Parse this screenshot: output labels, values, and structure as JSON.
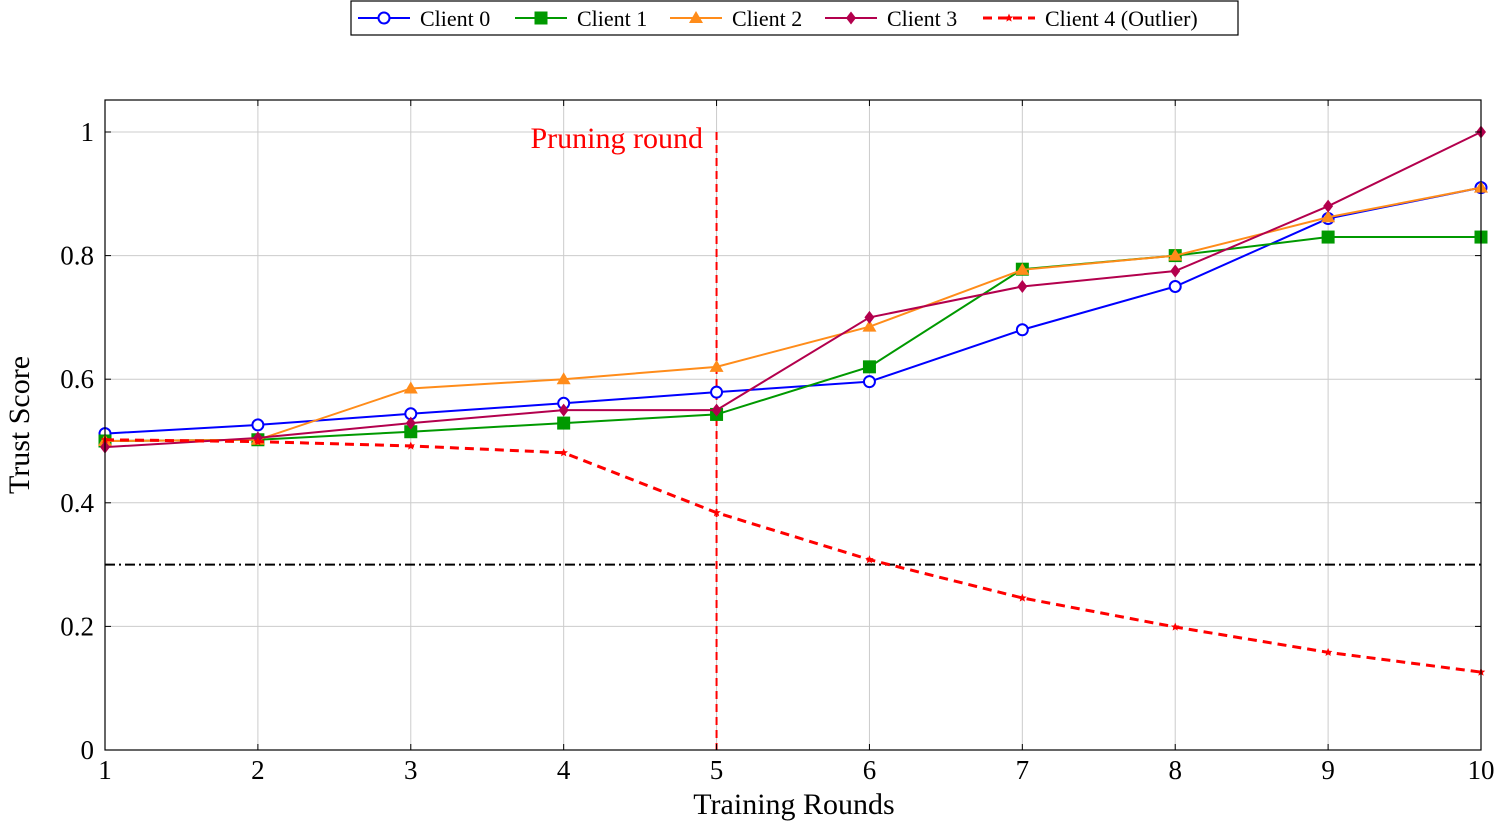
{
  "chart_data": {
    "type": "line",
    "xlabel": "Training Rounds",
    "ylabel": "Trust Score",
    "x": [
      1,
      2,
      3,
      4,
      5,
      6,
      7,
      8,
      9,
      10
    ],
    "xlim": [
      1,
      10
    ],
    "ylim": [
      0,
      1.05
    ],
    "xticks": [
      "1",
      "2",
      "3",
      "4",
      "5",
      "6",
      "7",
      "8",
      "9",
      "10"
    ],
    "yticks": [
      0,
      0.2,
      0.4,
      0.6,
      0.8,
      1
    ],
    "ytick_labels": [
      "0",
      "0.2",
      "0.4",
      "0.6",
      "0.8",
      "1"
    ],
    "grid": true,
    "legend_position": "top-center",
    "series": [
      {
        "name": "Client 0",
        "color": "#0000ff",
        "marker": "circle-open",
        "dash": "solid",
        "values": [
          0.512,
          0.526,
          0.544,
          0.561,
          0.579,
          0.596,
          0.68,
          0.75,
          0.86,
          0.91
        ]
      },
      {
        "name": "Client 1",
        "color": "#009900",
        "marker": "square",
        "dash": "solid",
        "values": [
          0.5,
          0.502,
          0.515,
          0.529,
          0.543,
          0.62,
          0.778,
          0.8,
          0.83,
          0.83
        ]
      },
      {
        "name": "Client 2",
        "color": "#ff8c1a",
        "marker": "triangle",
        "dash": "solid",
        "values": [
          0.5,
          0.502,
          0.585,
          0.6,
          0.62,
          0.685,
          0.777,
          0.8,
          0.862,
          0.91
        ]
      },
      {
        "name": "Client 3",
        "color": "#b3004d",
        "marker": "diamond",
        "dash": "solid",
        "values": [
          0.49,
          0.505,
          0.529,
          0.55,
          0.55,
          0.7,
          0.75,
          0.775,
          0.88,
          1.0
        ]
      },
      {
        "name": "Client 4 (Outlier)",
        "color": "#ff0000",
        "marker": "star",
        "dash": "dashed",
        "values": [
          0.502,
          0.499,
          0.492,
          0.481,
          0.384,
          0.308,
          0.246,
          0.199,
          0.158,
          0.126
        ]
      }
    ],
    "threshold": {
      "y": 0.3,
      "color": "#000000",
      "style": "dash-dot"
    },
    "annotation": {
      "text": "Pruning round",
      "x": 5,
      "color": "#ff0000"
    }
  }
}
